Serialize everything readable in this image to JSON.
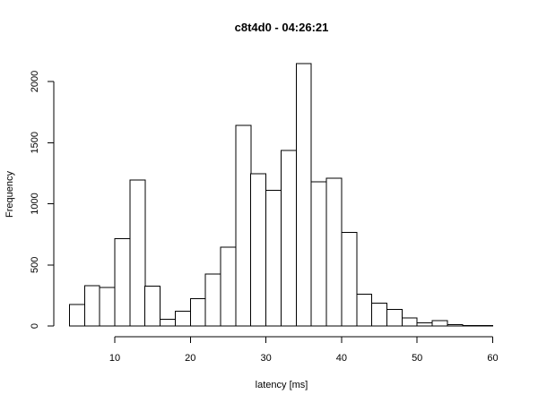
{
  "chart_data": {
    "type": "bar",
    "title": "c8t4d0 - 04:26:21",
    "xlabel": "latency [ms]",
    "ylabel": "Frequency",
    "bin_width": 2,
    "bins_start": [
      4,
      6,
      8,
      10,
      12,
      14,
      16,
      18,
      20,
      22,
      24,
      26,
      28,
      30,
      32,
      34,
      36,
      38,
      40,
      42,
      44,
      46,
      48,
      50,
      52,
      54,
      56,
      58
    ],
    "values": [
      175,
      330,
      315,
      715,
      1195,
      325,
      55,
      120,
      225,
      425,
      645,
      1640,
      1245,
      1110,
      1435,
      2145,
      1180,
      1210,
      765,
      260,
      185,
      135,
      65,
      25,
      45,
      10,
      5,
      5
    ],
    "xlim": [
      4,
      60
    ],
    "ylim": [
      0,
      2145
    ],
    "x_ticks": [
      10,
      20,
      30,
      40,
      50,
      60
    ],
    "y_ticks": [
      0,
      500,
      1000,
      1500,
      2000
    ]
  }
}
